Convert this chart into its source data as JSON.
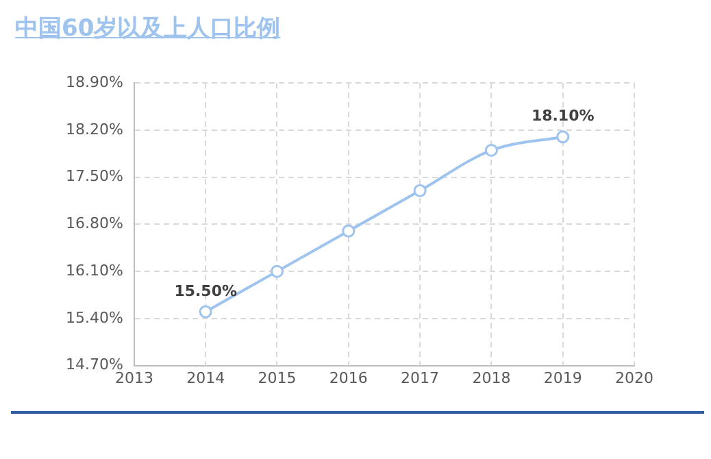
{
  "chart_data": {
    "type": "line",
    "title": "中国60岁以及上人口比例",
    "x": [
      2014,
      2015,
      2016,
      2017,
      2018,
      2019
    ],
    "series": [
      {
        "color": "#9dc3ee",
        "values": [
          15.5,
          16.1,
          16.7,
          17.3,
          17.9,
          18.1
        ],
        "value_labels": [
          "15.50%",
          null,
          null,
          null,
          null,
          "18.10%"
        ]
      }
    ],
    "xlim": [
      2013,
      2020
    ],
    "xticks": [
      2013,
      2014,
      2015,
      2016,
      2017,
      2018,
      2019,
      2020
    ],
    "ylim": [
      14.7,
      18.9
    ],
    "yticks": [
      {
        "value": 14.7,
        "label": "14.70%"
      },
      {
        "value": 15.4,
        "label": "15.40%"
      },
      {
        "value": 16.1,
        "label": "16.10%"
      },
      {
        "value": 16.8,
        "label": "16.80%"
      },
      {
        "value": 17.5,
        "label": "17.50%"
      },
      {
        "value": 18.2,
        "label": "18.20%"
      },
      {
        "value": 18.9,
        "label": "18.90%"
      }
    ],
    "grid": true,
    "legend": false,
    "marker": "circle",
    "line_style": "solid"
  }
}
